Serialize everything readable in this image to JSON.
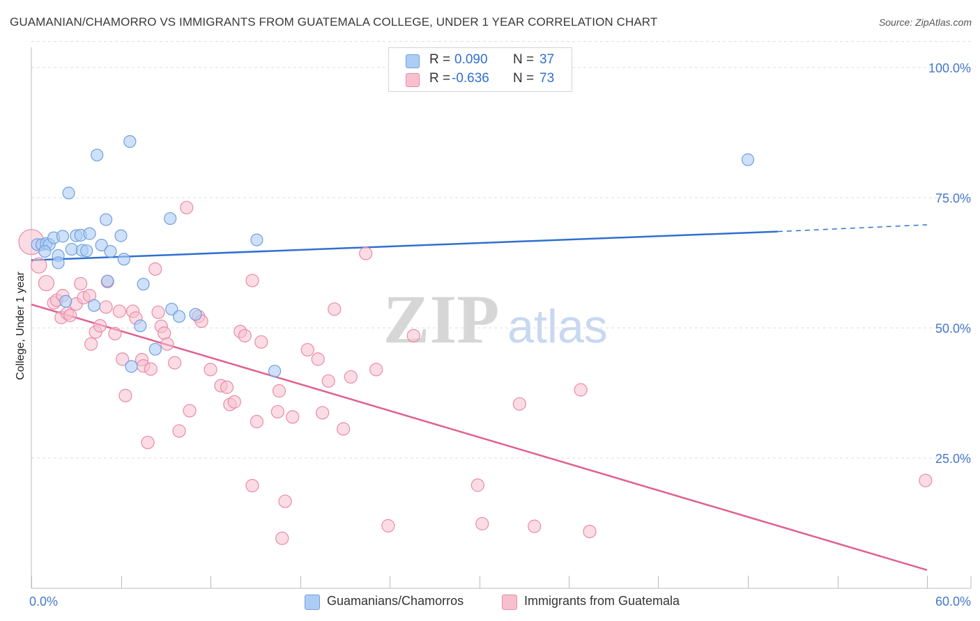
{
  "title": "GUAMANIAN/CHAMORRO VS IMMIGRANTS FROM GUATEMALA COLLEGE, UNDER 1 YEAR CORRELATION CHART",
  "source": "Source: ZipAtlas.com",
  "watermark": {
    "zip": "ZIP",
    "atlas": "atlas"
  },
  "legend": {
    "series1": {
      "r_label": "R =",
      "r_value": "0.090",
      "n_label": "N =",
      "n_value": "37"
    },
    "series2": {
      "r_label": "R =",
      "r_value": "-0.636",
      "n_label": "N =",
      "n_value": "73"
    }
  },
  "colors": {
    "blue_fill": "#aecdf5",
    "blue_stroke": "#6f9fdc",
    "blue_line": "#2f6fd0",
    "pink_fill": "#f7c0cf",
    "pink_stroke": "#e98aa5",
    "pink_line": "#e06090",
    "grid": "#dddddd",
    "tick_text": "#4477cc"
  },
  "chart_data": {
    "type": "scatter",
    "title": "GUAMANIAN/CHAMORRO VS IMMIGRANTS FROM GUATEMALA COLLEGE, UNDER 1 YEAR CORRELATION CHART",
    "xlabel": "",
    "ylabel": "College, Under 1 year",
    "xlim": [
      0,
      60
    ],
    "ylim": [
      0,
      105
    ],
    "x_tick_labels": [
      "0.0%",
      "60.0%"
    ],
    "y_ticks": [
      25,
      50,
      75,
      100
    ],
    "y_tick_labels": [
      "25.0%",
      "50.0%",
      "75.0%",
      "100.0%"
    ],
    "grid": true,
    "series": [
      {
        "name": "Guamanians/Chamorros",
        "color": "#aecdf5",
        "points": [
          [
            0.4,
            66
          ],
          [
            0.7,
            66
          ],
          [
            1.0,
            66.2
          ],
          [
            1.2,
            66
          ],
          [
            0.9,
            64.7
          ],
          [
            1.5,
            67.3
          ],
          [
            2.1,
            67.6
          ],
          [
            2.7,
            65.1
          ],
          [
            3.0,
            67.7
          ],
          [
            3.3,
            67.8
          ],
          [
            3.4,
            64.9
          ],
          [
            3.7,
            64.8
          ],
          [
            3.9,
            68.1
          ],
          [
            4.7,
            65.9
          ],
          [
            5.3,
            64.7
          ],
          [
            6.0,
            67.7
          ],
          [
            6.2,
            63.2
          ],
          [
            1.8,
            63.9
          ],
          [
            1.8,
            62.5
          ],
          [
            2.3,
            55.1
          ],
          [
            2.5,
            75.9
          ],
          [
            4.4,
            83.2
          ],
          [
            5.1,
            59
          ],
          [
            5.0,
            70.8
          ],
          [
            4.2,
            54.3
          ],
          [
            6.6,
            85.8
          ],
          [
            7.5,
            58.4
          ],
          [
            7.3,
            50.4
          ],
          [
            6.7,
            42.6
          ],
          [
            8.3,
            45.9
          ],
          [
            9.3,
            71
          ],
          [
            9.4,
            53.6
          ],
          [
            9.9,
            52.2
          ],
          [
            11.0,
            52.6
          ],
          [
            15.1,
            66.9
          ],
          [
            16.3,
            41.7
          ],
          [
            48.0,
            82.3
          ]
        ]
      },
      {
        "name": "Immigrants from Guatemala",
        "color": "#f7c0cf",
        "points": [
          [
            0.0,
            66.5
          ],
          [
            0.5,
            62
          ],
          [
            1.0,
            58.6
          ],
          [
            1.5,
            54.8
          ],
          [
            1.7,
            55.3
          ],
          [
            2.0,
            52
          ],
          [
            2.1,
            56.2
          ],
          [
            2.4,
            52.8
          ],
          [
            2.6,
            52.4
          ],
          [
            3.0,
            54.6
          ],
          [
            3.3,
            58.5
          ],
          [
            3.5,
            55.8
          ],
          [
            3.9,
            56.2
          ],
          [
            4.0,
            46.9
          ],
          [
            4.3,
            49.2
          ],
          [
            4.6,
            50.4
          ],
          [
            5.0,
            54
          ],
          [
            5.1,
            58.9
          ],
          [
            5.6,
            48.9
          ],
          [
            5.9,
            53.2
          ],
          [
            6.1,
            44
          ],
          [
            6.3,
            37
          ],
          [
            6.8,
            53.2
          ],
          [
            7.0,
            51.9
          ],
          [
            7.4,
            43.9
          ],
          [
            7.5,
            42.7
          ],
          [
            7.8,
            28
          ],
          [
            8.0,
            42.1
          ],
          [
            8.3,
            61.3
          ],
          [
            8.5,
            53
          ],
          [
            8.7,
            50.3
          ],
          [
            8.9,
            49
          ],
          [
            9.1,
            46.9
          ],
          [
            9.6,
            43.3
          ],
          [
            9.9,
            30.2
          ],
          [
            10.4,
            73.1
          ],
          [
            10.6,
            34.1
          ],
          [
            11.2,
            52.2
          ],
          [
            11.4,
            51.3
          ],
          [
            12.0,
            42
          ],
          [
            12.7,
            38.9
          ],
          [
            13.1,
            38.6
          ],
          [
            13.3,
            35.3
          ],
          [
            13.6,
            35.8
          ],
          [
            14.0,
            49.3
          ],
          [
            14.3,
            48.5
          ],
          [
            14.8,
            59.1
          ],
          [
            15.1,
            32
          ],
          [
            15.4,
            47.3
          ],
          [
            14.8,
            19.7
          ],
          [
            16.5,
            33.9
          ],
          [
            16.6,
            37.9
          ],
          [
            16.8,
            9.6
          ],
          [
            17.0,
            16.7
          ],
          [
            17.5,
            32.9
          ],
          [
            18.5,
            45.8
          ],
          [
            19.2,
            44
          ],
          [
            19.5,
            33.7
          ],
          [
            19.9,
            39.8
          ],
          [
            20.3,
            53.6
          ],
          [
            20.9,
            30.6
          ],
          [
            21.4,
            40.6
          ],
          [
            22.4,
            64.3
          ],
          [
            23.1,
            42
          ],
          [
            23.9,
            12
          ],
          [
            25.6,
            48.5
          ],
          [
            29.9,
            19.8
          ],
          [
            30.2,
            12.4
          ],
          [
            32.7,
            35.4
          ],
          [
            33.7,
            11.9
          ],
          [
            36.8,
            38.1
          ],
          [
            37.4,
            10.9
          ],
          [
            59.9,
            20.7
          ]
        ]
      }
    ],
    "trendlines": [
      {
        "series": "Guamanians/Chamorros",
        "from": [
          0,
          63
        ],
        "to": [
          50,
          68.5
        ],
        "dashed_to": [
          60,
          69.8
        ]
      },
      {
        "series": "Immigrants from Guatemala",
        "from": [
          0,
          54.5
        ],
        "to": [
          60,
          3.5
        ]
      }
    ]
  }
}
